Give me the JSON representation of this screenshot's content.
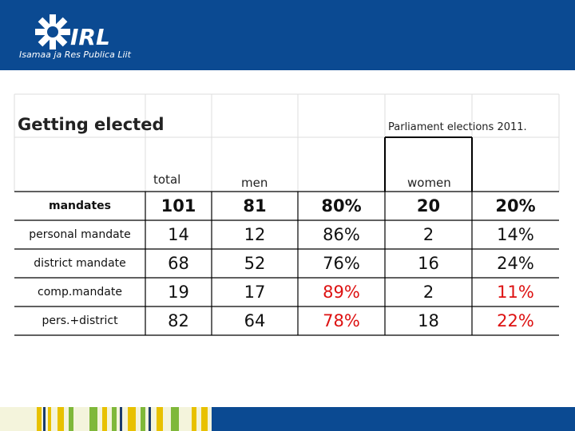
{
  "header": {
    "logo": "IRL",
    "tagline": "Isamaa ja Res Publica Liit"
  },
  "title": "Getting elected",
  "subtitle": "Parliament elections 2011.",
  "table": {
    "columns": [
      "total",
      "men",
      "women"
    ],
    "rows": [
      [
        "mandates",
        "101",
        "81",
        "80%",
        "20",
        "20%"
      ],
      [
        "personal mandate",
        "14",
        "12",
        "86%",
        "2",
        "14%"
      ],
      [
        "district mandate",
        "68",
        "52",
        "76%",
        "16",
        "24%"
      ],
      [
        "comp.mandate",
        "19",
        "17",
        "89%",
        "2",
        "11%"
      ],
      [
        "pers.+district",
        "82",
        "64",
        "78%",
        "18",
        "22%"
      ]
    ]
  }
}
